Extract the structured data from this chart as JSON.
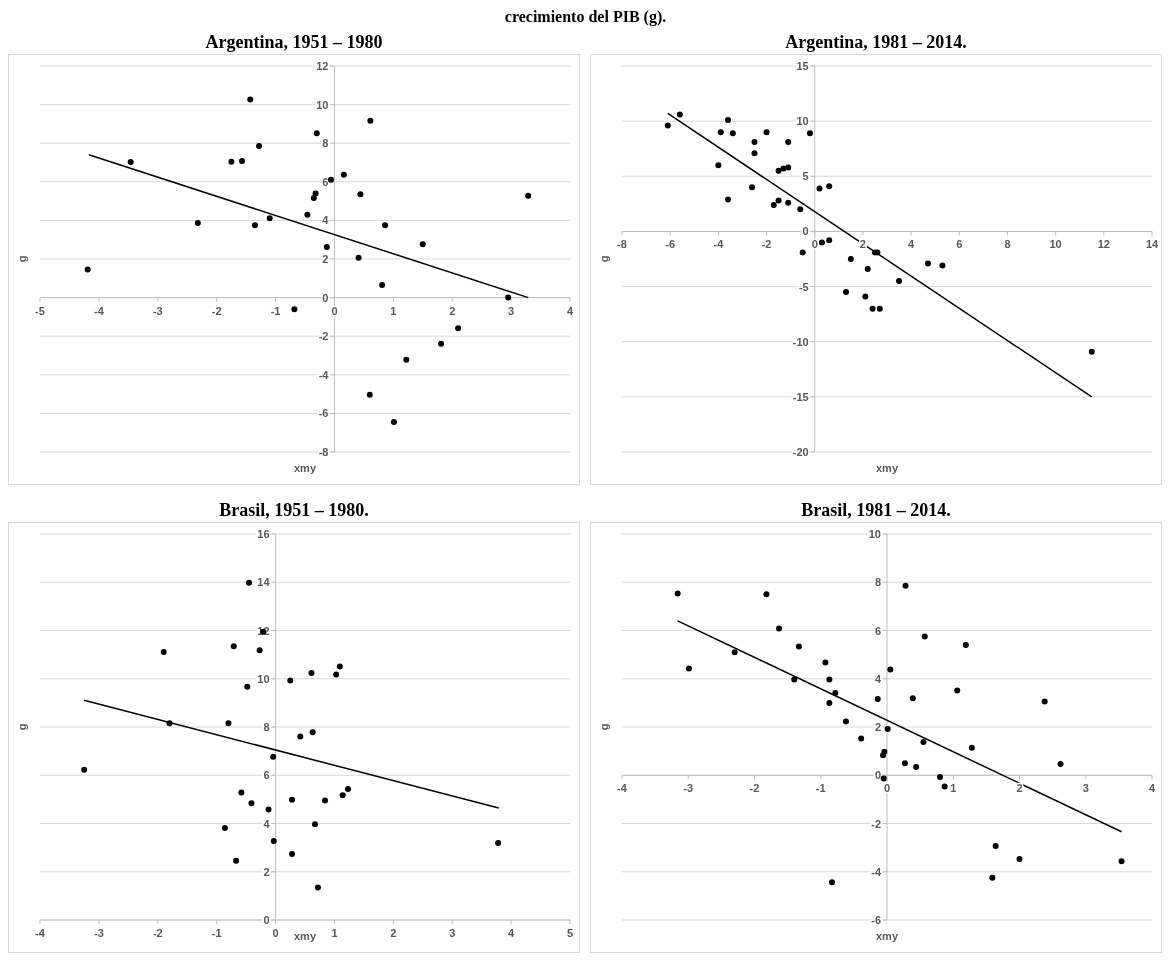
{
  "chart_data": [
    {
      "type": "scatter",
      "title": "Argentina, 1951 – 1980",
      "annotations": [
        "crecimiento del PIB (g)."
      ],
      "xlabel": "xmy",
      "ylabel": "g",
      "xlim": [
        -5,
        4
      ],
      "xticks": [
        -5,
        -4,
        -3,
        -2,
        -1,
        0,
        1,
        2,
        3,
        4
      ],
      "ylim": [
        -8,
        12
      ],
      "yticks": [
        -8,
        -6,
        -4,
        -2,
        0,
        2,
        4,
        6,
        8,
        10,
        12
      ],
      "grid": "y",
      "marker": "circle",
      "series": [
        {
          "color": "#000000",
          "x": [
            -1.43,
            0.61,
            -0.3,
            -1.28,
            -3.46,
            -1.75,
            -1.57,
            0.16,
            -0.06,
            -0.32,
            -0.35,
            0.44,
            3.29,
            -0.46,
            -1.1,
            -2.32,
            -1.35,
            0.86,
            1.5,
            -0.13,
            0.41,
            -4.19,
            0.81,
            2.95,
            -0.68,
            2.1,
            1.81,
            1.22,
            0.6,
            1.01
          ],
          "values": [
            10.26,
            9.16,
            8.52,
            7.86,
            7.02,
            7.04,
            7.08,
            6.37,
            6.1,
            5.39,
            5.16,
            5.36,
            5.28,
            4.29,
            4.11,
            3.87,
            3.75,
            3.75,
            2.77,
            2.62,
            2.06,
            1.45,
            0.65,
            0,
            -0.6,
            -1.59,
            -2.39,
            -3.22,
            -5.03,
            -6.44
          ]
        },
        {
          "type": "line",
          "color": "#000000",
          "marker": "none",
          "x": [
            -4.17,
            3.29
          ],
          "values": [
            7.4,
            0
          ]
        }
      ]
    },
    {
      "type": "scatter",
      "title": "Argentina, 1981 – 2014.",
      "xlabel": "xmy",
      "ylabel": "g",
      "xlim": [
        -8,
        14
      ],
      "xticks": [
        -8,
        -6,
        -4,
        -2,
        0,
        2,
        4,
        6,
        8,
        10,
        12,
        14
      ],
      "ylim": [
        -20,
        15
      ],
      "yticks": [
        -20,
        -15,
        -10,
        -5,
        0,
        5,
        10,
        15
      ],
      "grid": "y",
      "marker": "circle",
      "series": [
        {
          "color": "#000000",
          "x": [
            -6.1,
            -5.6,
            -3.6,
            -3.9,
            -3.4,
            -2.0,
            -0.2,
            -2.5,
            -1.1,
            -2.5,
            -4.0,
            -1.5,
            -1.3,
            -1.1,
            -2.6,
            0.2,
            0.6,
            -3.6,
            -1.5,
            -1.1,
            -1.7,
            -0.6,
            0.3,
            0.6,
            -0.5,
            2.5,
            2.6,
            1.5,
            4.7,
            5.3,
            2.2,
            3.5,
            1.3,
            2.1,
            2.4,
            2.7,
            11.5
          ],
          "values": [
            9.6,
            10.6,
            10.1,
            9.0,
            8.9,
            9.0,
            8.9,
            8.1,
            8.1,
            7.1,
            6.0,
            5.5,
            5.7,
            5.8,
            4.0,
            3.9,
            4.1,
            2.9,
            2.8,
            2.6,
            2.4,
            2.0,
            -1.0,
            -0.8,
            -1.9,
            -1.9,
            -1.9,
            -2.5,
            -2.9,
            -3.1,
            -3.4,
            -4.5,
            -5.5,
            -5.9,
            -7.0,
            -7.0,
            -10.9
          ]
        },
        {
          "type": "line",
          "color": "#000000",
          "marker": "none",
          "x": [
            -6.1,
            11.5
          ],
          "values": [
            10.7,
            -15
          ]
        }
      ]
    },
    {
      "type": "scatter",
      "title": "Brasil, 1951 – 1980.",
      "xlabel": "xmy",
      "ylabel": "g",
      "xlim": [
        -4,
        5
      ],
      "xticks": [
        -4,
        -3,
        -2,
        -1,
        0,
        1,
        2,
        3,
        4,
        5
      ],
      "ylim": [
        0,
        16
      ],
      "yticks": [
        0,
        2,
        4,
        6,
        8,
        10,
        12,
        14,
        16
      ],
      "grid": "y",
      "marker": "circle",
      "series": [
        {
          "color": "#000000",
          "x": [
            -0.45,
            -0.21,
            -1.9,
            -0.71,
            -0.27,
            1.09,
            0.61,
            1.03,
            0.25,
            -0.48,
            -1.8,
            -0.8,
            0.63,
            0.42,
            -0.04,
            -3.25,
            1.23,
            -0.58,
            1.14,
            0.28,
            0.84,
            -0.41,
            -0.12,
            -0.86,
            0.67,
            -0.03,
            3.78,
            0.28,
            -0.67,
            0.72
          ],
          "values": [
            13.98,
            11.95,
            11.11,
            11.35,
            11.18,
            10.51,
            10.24,
            10.18,
            9.93,
            9.67,
            8.16,
            8.16,
            7.78,
            7.61,
            6.77,
            6.23,
            5.43,
            5.29,
            5.17,
            4.98,
            4.95,
            4.84,
            4.58,
            3.81,
            3.97,
            3.27,
            3.19,
            2.74,
            2.46,
            1.35
          ]
        },
        {
          "type": "line",
          "color": "#000000",
          "marker": "none",
          "x": [
            -3.25,
            3.79
          ],
          "values": [
            9.11,
            4.64
          ]
        }
      ]
    },
    {
      "type": "scatter",
      "title": "Brasil, 1981 – 2014.",
      "xlabel": "xmy",
      "ylabel": "g",
      "xlim": [
        -4,
        4
      ],
      "xticks": [
        -4,
        -3,
        -2,
        -1,
        0,
        1,
        2,
        3,
        4
      ],
      "ylim": [
        -6,
        10
      ],
      "yticks": [
        -6,
        -4,
        -2,
        0,
        2,
        4,
        6,
        8,
        10
      ],
      "grid": "y",
      "marker": "circle",
      "series": [
        {
          "color": "#000000",
          "x": [
            -3.16,
            -1.82,
            0.28,
            -1.63,
            0.57,
            -1.33,
            1.19,
            -2.3,
            -2.99,
            -0.93,
            0.05,
            -1.4,
            -0.87,
            1.06,
            -0.78,
            -0.14,
            0.39,
            2.38,
            -0.87,
            -0.62,
            0.01,
            -0.39,
            0.55,
            1.28,
            -0.04,
            -0.06,
            0.27,
            0.44,
            2.62,
            0.8,
            -0.05,
            0.87,
            1.64,
            2.0,
            3.54,
            1.59,
            -0.83
          ],
          "values": [
            7.53,
            7.5,
            7.85,
            6.08,
            5.75,
            5.34,
            5.4,
            5.1,
            4.42,
            4.67,
            4.38,
            3.97,
            3.97,
            3.51,
            3.41,
            3.16,
            3.19,
            3.06,
            3.0,
            2.23,
            1.92,
            1.52,
            1.38,
            1.14,
            0.97,
            0.83,
            0.5,
            0.34,
            0.47,
            -0.07,
            -0.13,
            -0.47,
            -2.93,
            -3.47,
            -3.56,
            -4.25,
            -4.44
          ]
        },
        {
          "type": "line",
          "color": "#000000",
          "marker": "none",
          "x": [
            -3.16,
            3.54
          ],
          "values": [
            6.4,
            -2.34
          ]
        }
      ]
    }
  ]
}
